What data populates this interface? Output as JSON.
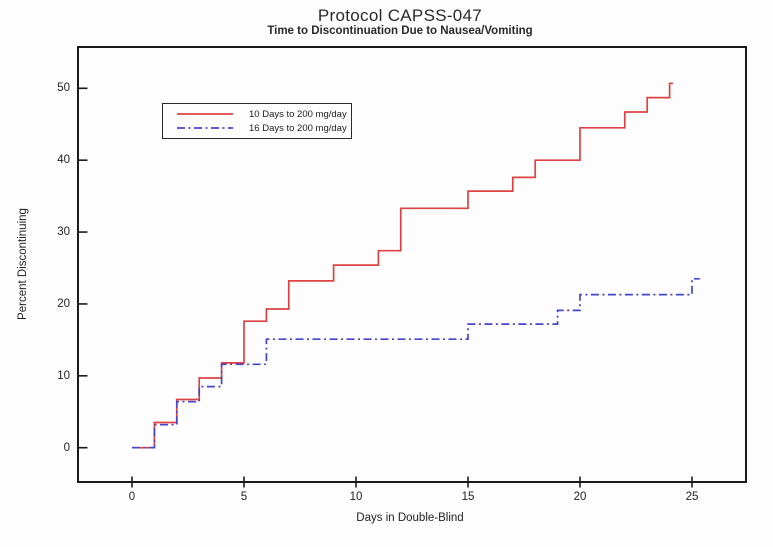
{
  "header": {
    "title": "Protocol CAPSS-047",
    "subtitle": "Time to Discontinuation Due to Nausea/Vomiting"
  },
  "chart_data": {
    "type": "line",
    "subtype": "kaplan-meier-step",
    "title": "Protocol CAPSS-047",
    "subtitle": "Time to Discontinuation Due to Nausea/Vomiting",
    "xlabel": "Days in Double-Blind",
    "ylabel": "Percent Discontinuing",
    "x_ticks": [
      0,
      5,
      10,
      15,
      20,
      25
    ],
    "y_ticks": [
      0,
      10,
      20,
      30,
      40,
      50
    ],
    "xlim": [
      -2.4,
      27.4
    ],
    "ylim": [
      -4.8,
      55.8
    ],
    "grid": false,
    "frame": true,
    "legend": {
      "position": "upper-left-inside",
      "entries": [
        "10 Days to 200 mg/day",
        "16 Days to 200 mg/day"
      ]
    },
    "series": [
      {
        "name": "10 Days to 200 mg/day",
        "slug": "10-days",
        "color": "#dd4343",
        "style": "solid",
        "points": [
          [
            0,
            0
          ],
          [
            1,
            3.5
          ],
          [
            2,
            6.7
          ],
          [
            3,
            9.7
          ],
          [
            4,
            11.8
          ],
          [
            5,
            17.6
          ],
          [
            6,
            19.3
          ],
          [
            7,
            23.2
          ],
          [
            9,
            25.4
          ],
          [
            11,
            27.4
          ],
          [
            12,
            33.3
          ],
          [
            15,
            35.7
          ],
          [
            17,
            37.6
          ],
          [
            18,
            40.0
          ],
          [
            20,
            44.5
          ],
          [
            22,
            46.7
          ],
          [
            23,
            48.7
          ],
          [
            24,
            50.7
          ]
        ],
        "end_day": 24.15
      },
      {
        "name": "16 Days to 200 mg/day",
        "slug": "16-days",
        "color": "#4444cc",
        "style": "dash-dot",
        "points": [
          [
            0,
            0
          ],
          [
            1,
            3.2
          ],
          [
            2,
            6.4
          ],
          [
            3,
            8.5
          ],
          [
            4,
            11.6
          ],
          [
            6,
            15.1
          ],
          [
            15,
            17.2
          ],
          [
            19,
            19.1
          ],
          [
            20,
            21.3
          ],
          [
            25,
            23.5
          ]
        ],
        "end_day": 25.35
      }
    ],
    "colors": {
      "axis": "#1a1a1a",
      "text": "#222222",
      "background": "#fdfdfd"
    }
  }
}
